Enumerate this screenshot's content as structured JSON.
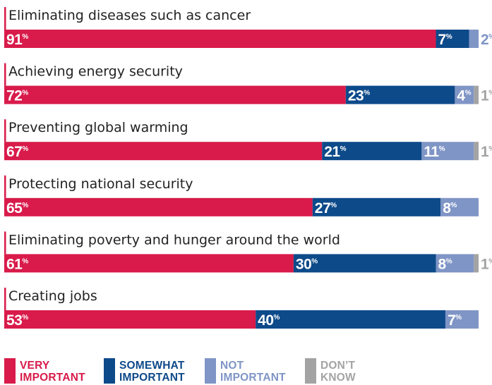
{
  "colors": {
    "very": "#d81b4a",
    "somewhat": "#0d4a8a",
    "not": "#7f95c6",
    "dontknow": "#a3a3a3",
    "divider": "#d81b4a"
  },
  "chart_data": {
    "type": "bar",
    "orientation": "horizontal-stacked",
    "unit": "%",
    "categories": [
      "Eliminating diseases such as cancer",
      "Achieving energy security",
      "Preventing global warming",
      "Protecting national security",
      "Eliminating poverty and hunger around the world",
      "Creating jobs"
    ],
    "series": [
      {
        "key": "very",
        "name": "VERY IMPORTANT",
        "values": [
          91,
          72,
          67,
          65,
          61,
          53
        ]
      },
      {
        "key": "somewhat",
        "name": "SOMEWHAT IMPORTANT",
        "values": [
          7,
          23,
          21,
          27,
          30,
          40
        ]
      },
      {
        "key": "not",
        "name": "NOT IMPORTANT",
        "values": [
          2,
          4,
          11,
          8,
          8,
          7
        ]
      },
      {
        "key": "dontknow",
        "name": "DON'T KNOW",
        "values": [
          null,
          1,
          1,
          null,
          1,
          null
        ]
      }
    ],
    "legend": [
      {
        "key": "very",
        "line1": "VERY",
        "line2": "IMPORTANT"
      },
      {
        "key": "somewhat",
        "line1": "SOMEWHAT",
        "line2": "IMPORTANT"
      },
      {
        "key": "not",
        "line1": "NOT",
        "line2": "IMPORTANT"
      },
      {
        "key": "dontknow",
        "line1": "DON’T",
        "line2": "KNOW"
      }
    ],
    "legend_position": "bottom",
    "grid": false
  }
}
